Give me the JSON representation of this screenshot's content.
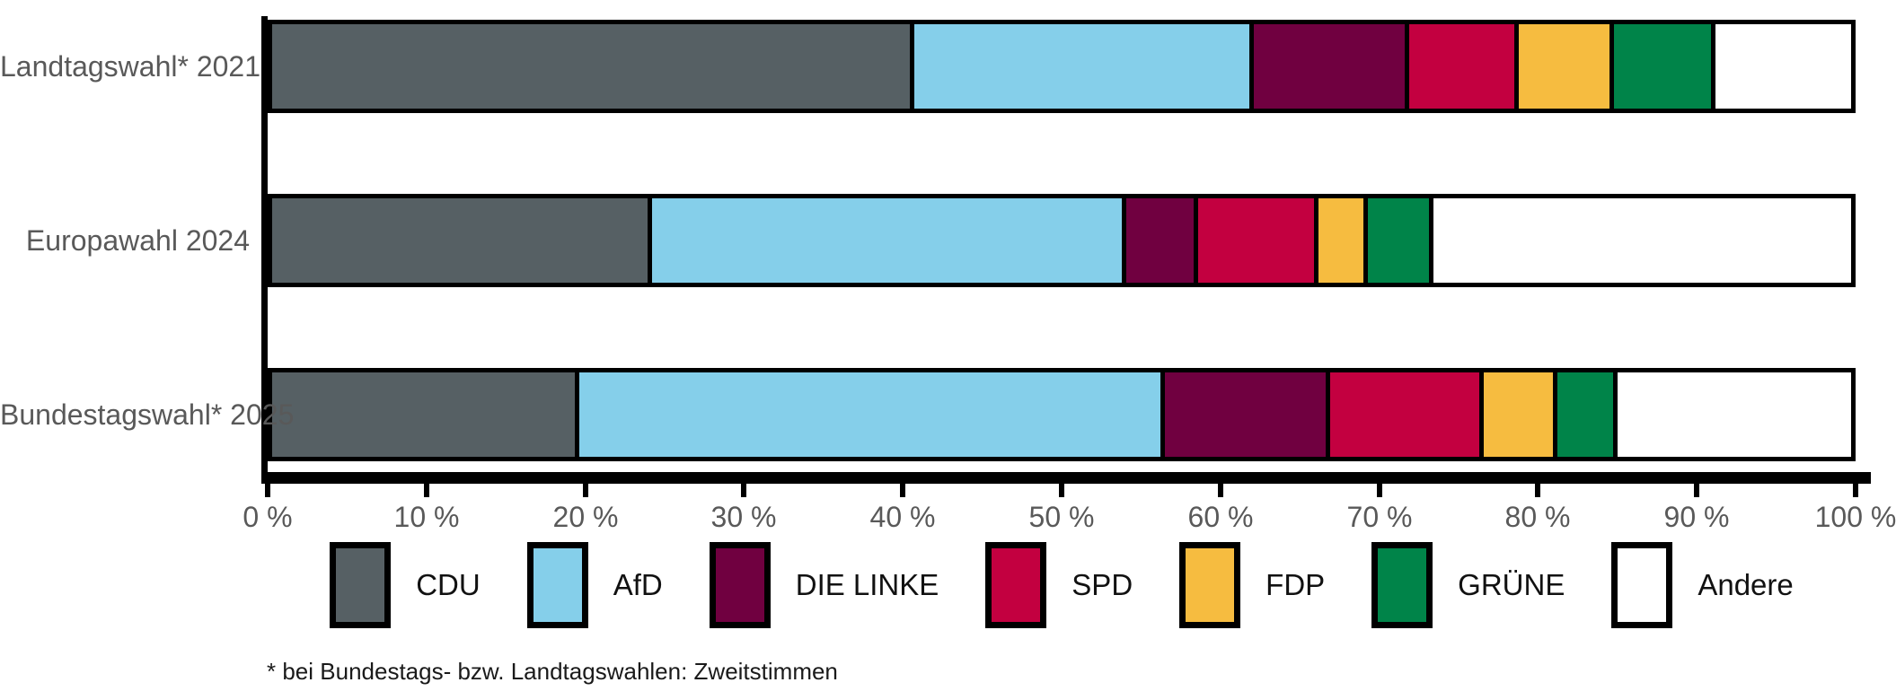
{
  "chart_data": {
    "type": "bar",
    "orientation": "horizontal",
    "stacked": true,
    "title": "",
    "xlabel": "",
    "ylabel": "",
    "grid": false,
    "legend_position": "bottom",
    "categories": [
      "Landtagswahl* 2021",
      "Europawahl 2024",
      "Bundestagswahl* 2025"
    ],
    "series": [
      {
        "name": "CDU",
        "color": "#566064",
        "values": [
          40.7,
          24.2,
          19.6
        ]
      },
      {
        "name": "AfD",
        "color": "#85CFEA",
        "values": [
          21.4,
          29.9,
          36.9
        ]
      },
      {
        "name": "DIE LINKE",
        "color": "#700040",
        "values": [
          9.8,
          4.5,
          10.4
        ]
      },
      {
        "name": "SPD",
        "color": "#C30040",
        "values": [
          6.9,
          7.6,
          9.7
        ]
      },
      {
        "name": "FDP",
        "color": "#F6BC40",
        "values": [
          6.0,
          3.1,
          4.6
        ]
      },
      {
        "name": "GRÜNE",
        "color": "#008449",
        "values": [
          6.4,
          4.1,
          3.8
        ]
      },
      {
        "name": "Andere",
        "color": "#FFFFFF",
        "values": [
          8.8,
          26.6,
          15.0
        ]
      }
    ],
    "x_axis": {
      "min": 0,
      "max": 100,
      "tick_step": 10,
      "tick_labels": [
        "0 %",
        "10 %",
        "20 %",
        "30 %",
        "40 %",
        "50 %",
        "60 %",
        "70 %",
        "80 %",
        "90 %",
        "100 %"
      ]
    },
    "legend": [
      "CDU",
      "AfD",
      "DIE LINKE",
      "SPD",
      "FDP",
      "GRÜNE",
      "Andere"
    ],
    "footnote": "* bei Bundestags- bzw. Landtagswahlen: Zweitstimmen",
    "style": {
      "text_color": "#595959",
      "legend_text_color": "#111111",
      "border_color": "#000000",
      "background_color": "#FFFFFF"
    }
  }
}
